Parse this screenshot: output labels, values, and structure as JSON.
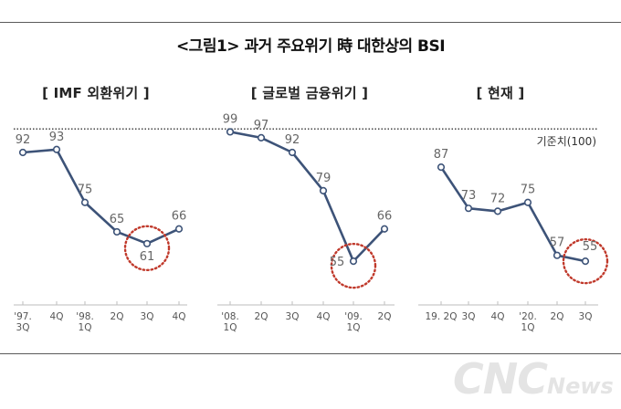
{
  "figure_title": "<그림1> 과거 주요위기 時 대한상의 BSI",
  "watermark": {
    "brand": "CNC",
    "suffix": "News"
  },
  "chart_data": [
    {
      "type": "line",
      "title": "[ IMF 외환위기 ]",
      "categories": [
        "'97.\n3Q",
        "4Q",
        "'98.\n1Q",
        "2Q",
        "3Q",
        "4Q"
      ],
      "values": [
        92,
        93,
        75,
        65,
        61,
        66
      ],
      "highlight": 4
    },
    {
      "type": "line",
      "title": "[ 글로벌 금융위기 ]",
      "categories": [
        "'08.\n1Q",
        "2Q",
        "3Q",
        "4Q",
        "'09.\n1Q",
        "2Q"
      ],
      "values": [
        99,
        97,
        92,
        79,
        55,
        66
      ],
      "highlight": 4
    },
    {
      "type": "line",
      "title": "[ 현재 ]",
      "categories": [
        "19. 2Q",
        "3Q",
        "4Q",
        "'20.\n1Q",
        "2Q",
        "3Q"
      ],
      "values": [
        87,
        73,
        72,
        75,
        57,
        55
      ],
      "highlight": 5
    }
  ],
  "baseline": {
    "label": "기준치(100)",
    "value": 100
  },
  "colors": {
    "line": "#3d5378",
    "baseline": "#444444",
    "axis": "#bdbdbd",
    "highlight": "#c0392b",
    "label": "#666666"
  }
}
